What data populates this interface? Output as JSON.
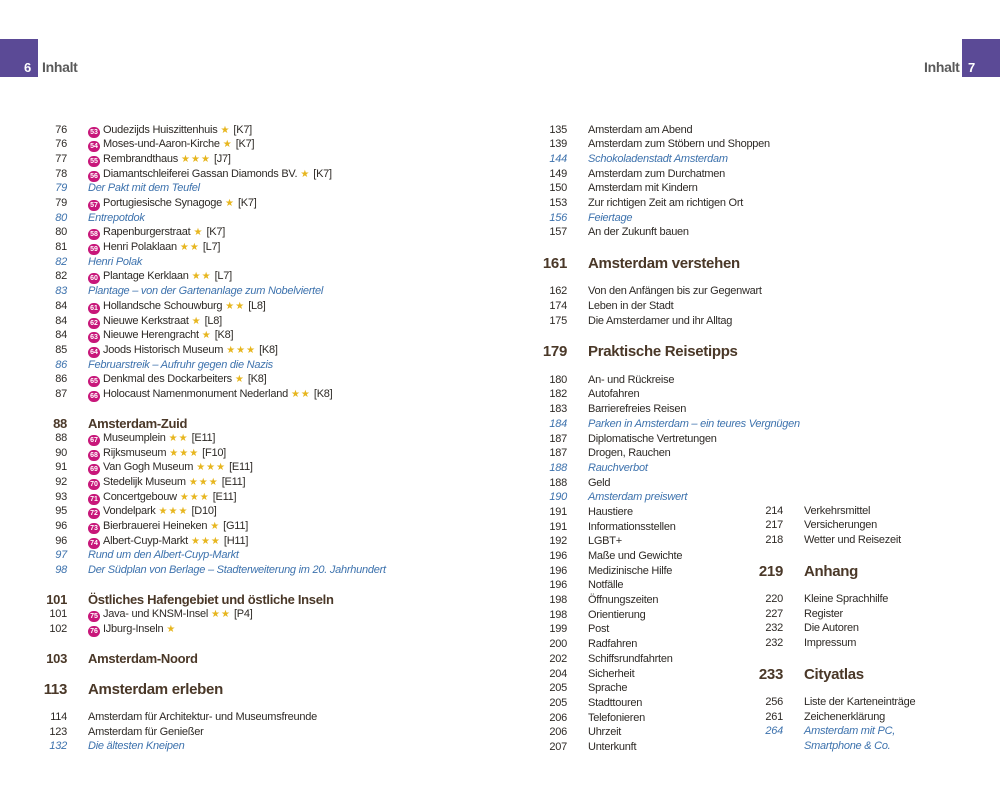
{
  "header": {
    "left": {
      "page": "6",
      "title": "Inhalt"
    },
    "right": {
      "page": "7",
      "title": "Inhalt"
    },
    "accent_color": "#5b4a96"
  },
  "colors": {
    "badge": "#c8177a",
    "star": "#e7b61f",
    "italic_link": "#3d72ad",
    "heading": "#4a3828"
  },
  "left_column": [
    {
      "type": "entry",
      "p": "76",
      "badge": "53",
      "title": "Oudezijds Huiszittenhuis",
      "stars": 1,
      "grid": "[K7]"
    },
    {
      "type": "entry",
      "p": "76",
      "badge": "54",
      "title": "Moses-und-Aaron-Kirche",
      "stars": 1,
      "grid": "[K7]"
    },
    {
      "type": "entry",
      "p": "77",
      "badge": "55",
      "title": "Rembrandthaus",
      "stars": 3,
      "grid": "[J7]"
    },
    {
      "type": "entry",
      "p": "78",
      "badge": "56",
      "title": "Diamantschleiferei Gassan Diamonds BV.",
      "stars": 1,
      "grid": "[K7]"
    },
    {
      "type": "italic",
      "p": "79",
      "title": "Der Pakt mit dem Teufel"
    },
    {
      "type": "entry",
      "p": "79",
      "badge": "57",
      "title": "Portugiesische Synagoge",
      "stars": 1,
      "grid": "[K7]"
    },
    {
      "type": "italic",
      "p": "80",
      "title": "Entrepotdok"
    },
    {
      "type": "entry",
      "p": "80",
      "badge": "58",
      "title": "Rapenburgerstraat",
      "stars": 1,
      "grid": "[K7]"
    },
    {
      "type": "entry",
      "p": "81",
      "badge": "59",
      "title": "Henri Polaklaan",
      "stars": 2,
      "grid": "[L7]"
    },
    {
      "type": "italic",
      "p": "82",
      "title": "Henri Polak"
    },
    {
      "type": "entry",
      "p": "82",
      "badge": "60",
      "title": "Plantage Kerklaan",
      "stars": 2,
      "grid": "[L7]"
    },
    {
      "type": "italic",
      "p": "83",
      "title": "Plantage – von der Gartenanlage zum Nobelviertel"
    },
    {
      "type": "entry",
      "p": "84",
      "badge": "61",
      "title": "Hollandsche Schouwburg",
      "stars": 2,
      "grid": "[L8]"
    },
    {
      "type": "entry",
      "p": "84",
      "badge": "62",
      "title": "Nieuwe Kerkstraat",
      "stars": 1,
      "grid": "[L8]"
    },
    {
      "type": "entry",
      "p": "84",
      "badge": "63",
      "title": "Nieuwe Herengracht",
      "stars": 1,
      "grid": "[K8]"
    },
    {
      "type": "entry",
      "p": "85",
      "badge": "64",
      "title": "Joods Historisch Museum",
      "stars": 3,
      "grid": "[K8]"
    },
    {
      "type": "italic",
      "p": "86",
      "title": "Februarstreik – Aufruhr gegen die Nazis"
    },
    {
      "type": "entry",
      "p": "86",
      "badge": "65",
      "title": "Denkmal des Dockarbeiters",
      "stars": 1,
      "grid": "[K8]"
    },
    {
      "type": "entry",
      "p": "87",
      "badge": "66",
      "title": "Holocaust Namenmonument Nederland",
      "stars": 2,
      "grid": "[K8]"
    },
    {
      "type": "sub",
      "p": "88",
      "title": "Amsterdam-Zuid"
    },
    {
      "type": "entry",
      "p": "88",
      "badge": "67",
      "title": "Museumplein",
      "stars": 2,
      "grid": "[E11]"
    },
    {
      "type": "entry",
      "p": "90",
      "badge": "68",
      "title": "Rijksmuseum",
      "stars": 3,
      "grid": "[F10]"
    },
    {
      "type": "entry",
      "p": "91",
      "badge": "69",
      "title": "Van Gogh Museum",
      "stars": 3,
      "grid": "[E11]"
    },
    {
      "type": "entry",
      "p": "92",
      "badge": "70",
      "title": "Stedelijk Museum",
      "stars": 3,
      "grid": "[E11]"
    },
    {
      "type": "entry",
      "p": "93",
      "badge": "71",
      "title": "Concertgebouw",
      "stars": 3,
      "grid": "[E11]"
    },
    {
      "type": "entry",
      "p": "95",
      "badge": "72",
      "title": "Vondelpark",
      "stars": 3,
      "grid": "[D10]"
    },
    {
      "type": "entry",
      "p": "96",
      "badge": "73",
      "title": "Bierbrauerei Heineken",
      "stars": 1,
      "grid": "[G11]"
    },
    {
      "type": "entry",
      "p": "96",
      "badge": "74",
      "title": "Albert-Cuyp-Markt",
      "stars": 3,
      "grid": "[H11]"
    },
    {
      "type": "italic",
      "p": "97",
      "title": "Rund um den Albert-Cuyp-Markt"
    },
    {
      "type": "italic",
      "p": "98",
      "title": "Der Südplan von Berlage – Stadterweiterung im 20. Jahrhundert"
    },
    {
      "type": "sub",
      "p": "101",
      "title": "Östliches Hafengebiet und östliche Inseln"
    },
    {
      "type": "entry",
      "p": "101",
      "badge": "75",
      "title": "Java- und KNSM-Insel",
      "stars": 2,
      "grid": "[P4]"
    },
    {
      "type": "entry",
      "p": "102",
      "badge": "76",
      "title": "IJburg-Inseln",
      "stars": 1,
      "grid": ""
    },
    {
      "type": "sub",
      "p": "103",
      "title": "Amsterdam-Noord"
    },
    {
      "type": "main",
      "p": "113",
      "title": "Amsterdam erleben"
    },
    {
      "type": "plain",
      "p": "114",
      "title": "Amsterdam für Architektur- und Museumsfreunde"
    },
    {
      "type": "plain",
      "p": "123",
      "title": "Amsterdam für Genießer"
    },
    {
      "type": "italic",
      "p": "132",
      "title": "Die ältesten Kneipen"
    }
  ],
  "right_column": [
    {
      "type": "plain",
      "p": "135",
      "title": "Amsterdam am Abend"
    },
    {
      "type": "plain",
      "p": "139",
      "title": "Amsterdam zum Stöbern und Shoppen"
    },
    {
      "type": "italic",
      "p": "144",
      "title": "Schokoladenstadt Amsterdam"
    },
    {
      "type": "plain",
      "p": "149",
      "title": "Amsterdam zum Durchatmen"
    },
    {
      "type": "plain",
      "p": "150",
      "title": "Amsterdam mit Kindern"
    },
    {
      "type": "plain",
      "p": "153",
      "title": "Zur richtigen Zeit am richtigen Ort"
    },
    {
      "type": "italic",
      "p": "156",
      "title": "Feiertage"
    },
    {
      "type": "plain",
      "p": "157",
      "title": "An der Zukunft bauen"
    },
    {
      "type": "main",
      "p": "161",
      "title": "Amsterdam verstehen"
    },
    {
      "type": "plain",
      "p": "162",
      "title": "Von den Anfängen bis zur Gegenwart"
    },
    {
      "type": "plain",
      "p": "174",
      "title": "Leben in der Stadt"
    },
    {
      "type": "plain",
      "p": "175",
      "title": "Die Amsterdamer und ihr Alltag"
    },
    {
      "type": "main",
      "p": "179",
      "title": "Praktische Reisetipps"
    },
    {
      "type": "plain",
      "p": "180",
      "title": "An- und Rückreise"
    },
    {
      "type": "plain",
      "p": "182",
      "title": "Autofahren"
    },
    {
      "type": "plain",
      "p": "183",
      "title": "Barrierefreies Reisen"
    },
    {
      "type": "italic",
      "p": "184",
      "title": "Parken in Amsterdam – ein teures Vergnügen"
    },
    {
      "type": "plain",
      "p": "187",
      "title": "Diplomatische Vertretungen"
    },
    {
      "type": "plain",
      "p": "187",
      "title": "Drogen, Rauchen"
    },
    {
      "type": "italic",
      "p": "188",
      "title": "Rauchverbot"
    },
    {
      "type": "plain",
      "p": "188",
      "title": "Geld"
    },
    {
      "type": "italic",
      "p": "190",
      "title": "Amsterdam preiswert"
    },
    {
      "type": "plain",
      "p": "191",
      "title": "Haustiere"
    },
    {
      "type": "plain",
      "p": "191",
      "title": "Informationsstellen"
    },
    {
      "type": "plain",
      "p": "192",
      "title": "LGBT+"
    },
    {
      "type": "plain",
      "p": "196",
      "title": "Maße und Gewichte"
    },
    {
      "type": "plain",
      "p": "196",
      "title": "Medizinische Hilfe"
    },
    {
      "type": "plain",
      "p": "196",
      "title": "Notfälle"
    },
    {
      "type": "plain",
      "p": "198",
      "title": "Öffnungszeiten"
    },
    {
      "type": "plain",
      "p": "198",
      "title": "Orientierung"
    },
    {
      "type": "plain",
      "p": "199",
      "title": "Post"
    },
    {
      "type": "plain",
      "p": "200",
      "title": "Radfahren"
    },
    {
      "type": "plain",
      "p": "202",
      "title": "Schiffsrundfahrten"
    },
    {
      "type": "plain",
      "p": "204",
      "title": "Sicherheit"
    },
    {
      "type": "plain",
      "p": "205",
      "title": "Sprache"
    },
    {
      "type": "plain",
      "p": "205",
      "title": "Stadttouren"
    },
    {
      "type": "plain",
      "p": "206",
      "title": "Telefonieren"
    },
    {
      "type": "plain",
      "p": "206",
      "title": "Uhrzeit"
    },
    {
      "type": "plain",
      "p": "207",
      "title": "Unterkunft"
    }
  ],
  "right_column_2": [
    {
      "type": "plain",
      "p": "214",
      "title": "Verkehrsmittel"
    },
    {
      "type": "plain",
      "p": "217",
      "title": "Versicherungen"
    },
    {
      "type": "plain",
      "p": "218",
      "title": "Wetter und Reisezeit"
    },
    {
      "type": "main",
      "p": "219",
      "title": "Anhang"
    },
    {
      "type": "plain",
      "p": "220",
      "title": "Kleine Sprachhilfe"
    },
    {
      "type": "plain",
      "p": "227",
      "title": "Register"
    },
    {
      "type": "plain",
      "p": "232",
      "title": "Die Autoren"
    },
    {
      "type": "plain",
      "p": "232",
      "title": "Impressum"
    },
    {
      "type": "main",
      "p": "233",
      "title": "Cityatlas"
    },
    {
      "type": "plain",
      "p": "256",
      "title": "Liste der Karteneinträge"
    },
    {
      "type": "plain",
      "p": "261",
      "title": "Zeichenerklärung"
    },
    {
      "type": "italic",
      "p": "264",
      "title": "Amsterdam mit PC,"
    },
    {
      "type": "italic",
      "p": "",
      "title": "Smartphone & Co."
    }
  ]
}
